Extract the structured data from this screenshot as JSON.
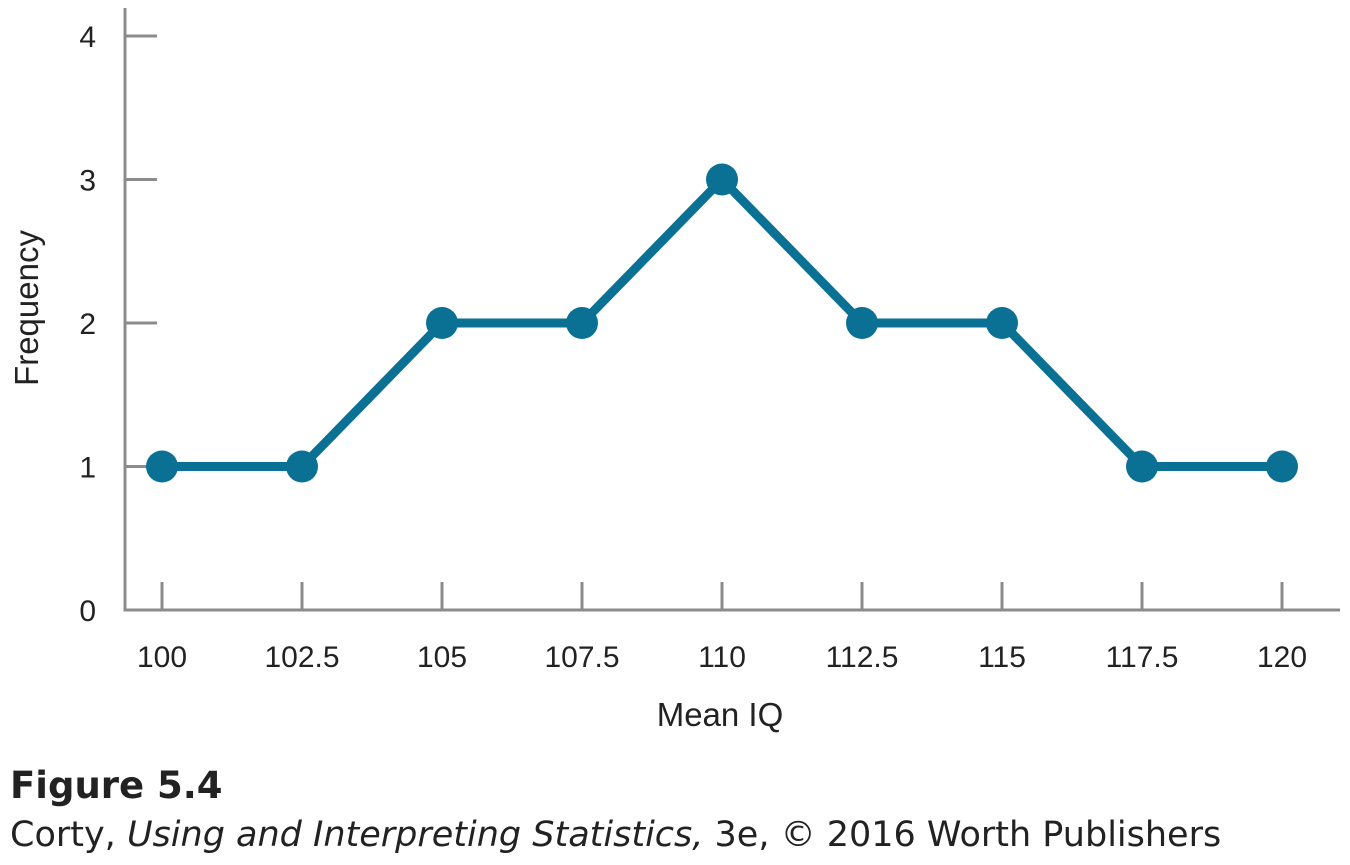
{
  "chart_data": {
    "type": "line",
    "x": [
      100,
      102.5,
      105,
      107.5,
      110,
      112.5,
      115,
      117.5,
      120
    ],
    "x_tick_labels": [
      "100",
      "102.5",
      "105",
      "107.5",
      "110",
      "112.5",
      "115",
      "117.5",
      "120"
    ],
    "series": [
      {
        "values": [
          1,
          1,
          2,
          2,
          3,
          2,
          2,
          1,
          1
        ]
      }
    ],
    "xlabel": "Mean IQ",
    "ylabel": "Frequency",
    "y_ticks": [
      0,
      1,
      2,
      3,
      4
    ],
    "ylim": [
      0,
      4
    ],
    "xlim": [
      100,
      120
    ],
    "grid": false,
    "markers": true
  },
  "colors": {
    "series": "#0a7194",
    "axis": "#8c8c8c",
    "text": "#222222"
  },
  "caption": {
    "label": "Figure 5.4",
    "credit_prefix": "Corty, ",
    "credit_title": "Using and Interpreting Statistics,",
    "credit_suffix": " 3e, © 2016 Worth Publishers"
  }
}
